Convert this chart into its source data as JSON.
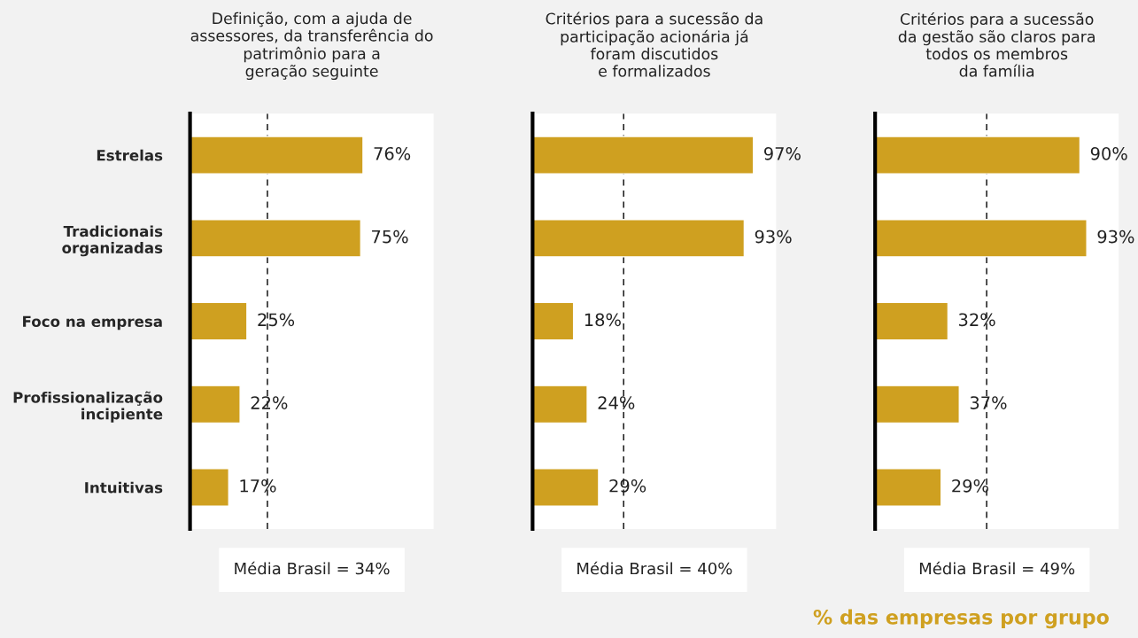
{
  "chart_data": [
    {
      "type": "bar",
      "orientation": "horizontal",
      "title": "Definição, com a ajuda de\nassessores, da transferência do\npatrimônio para a\ngeração seguinte",
      "categories": [
        "Estrelas",
        "Tradicionais\norganizadas",
        "Foco na empresa",
        "Profissionalização\nincipiente",
        "Intuitivas"
      ],
      "values": [
        76,
        75,
        25,
        22,
        17
      ],
      "value_labels": [
        "76%",
        "75%",
        "25%",
        "22%",
        "17%"
      ],
      "color": "#cfa020",
      "xlim": [
        0,
        107
      ],
      "tick_labels": "y",
      "grid": false,
      "legend": false,
      "ref_lines": [
        {
          "axis": "x",
          "value": 34,
          "label": "Média Brasil = 34%",
          "line_style": "dashed",
          "color": "#000000"
        }
      ]
    },
    {
      "type": "bar",
      "orientation": "horizontal",
      "title": "Critérios para a sucessão da\nparticipação acionária já\nforam discutidos\ne formalizados",
      "categories": [
        null,
        null,
        null,
        null,
        null
      ],
      "values": [
        97,
        93,
        18,
        24,
        29
      ],
      "value_labels": [
        "97%",
        "93%",
        "18%",
        "24%",
        "29%"
      ],
      "color": "#cfa020",
      "xlim": [
        0,
        107
      ],
      "tick_labels": false,
      "grid": false,
      "legend": false,
      "ref_lines": [
        {
          "axis": "x",
          "value": 40,
          "label": "Média Brasil = 40%",
          "line_style": "dashed",
          "color": "#000000"
        }
      ]
    },
    {
      "type": "bar",
      "orientation": "horizontal",
      "title": "Critérios para a sucessão\nda gestão são claros para\ntodos os membros\nda família",
      "categories": [
        null,
        null,
        null,
        null,
        null
      ],
      "values": [
        90,
        93,
        32,
        37,
        29
      ],
      "value_labels": [
        "90%",
        "93%",
        "32%",
        "37%",
        "29%"
      ],
      "color": "#cfa020",
      "xlim": [
        0,
        107
      ],
      "tick_labels": false,
      "grid": false,
      "legend": false,
      "ref_lines": [
        {
          "axis": "x",
          "value": 49,
          "label": "Média Brasil = 49%",
          "line_style": "dashed",
          "color": "#000000"
        }
      ],
      "annotations": [
        "% das empresas por grupo"
      ]
    }
  ]
}
